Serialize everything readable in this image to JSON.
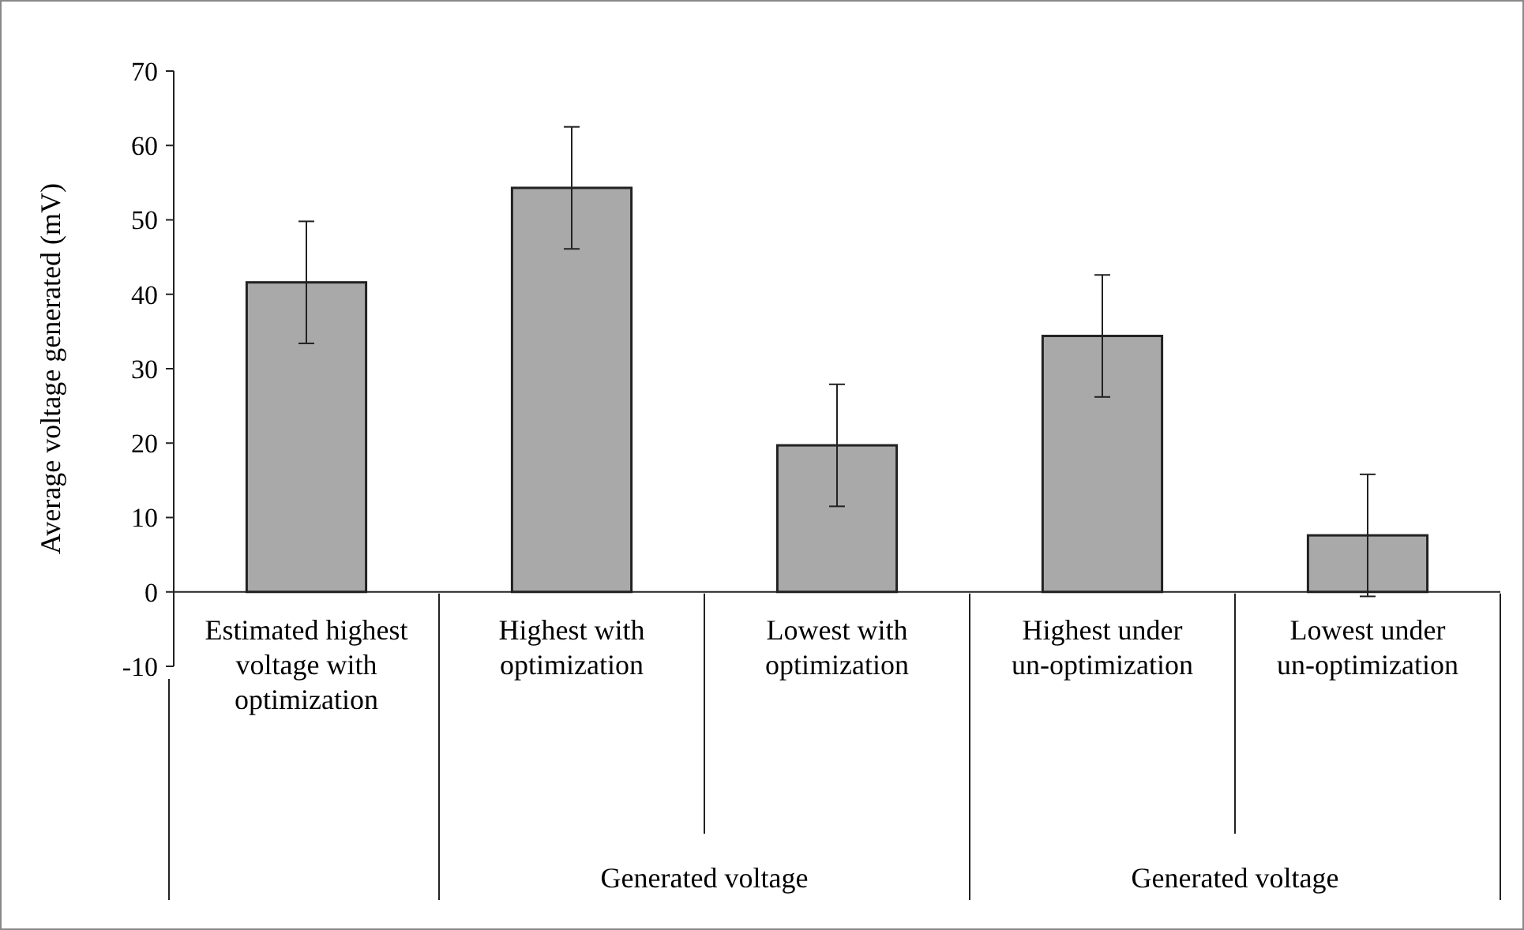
{
  "chart_data": {
    "type": "bar",
    "ylabel": "Average voltage generated (mV)",
    "categories": [
      "Estimated highest voltage with optimization",
      "Highest with optimization",
      "Lowest with optimization",
      "Highest under un-optimization",
      "Lowest under un-optimization"
    ],
    "values": [
      41.6,
      54.3,
      19.7,
      34.4,
      7.6
    ],
    "errors": [
      8.2,
      8.2,
      8.2,
      8.2,
      8.2
    ],
    "color": "#a9a9a9",
    "ylim": [
      -10,
      70
    ],
    "yticks": [
      -10,
      0,
      10,
      20,
      30,
      40,
      50,
      60,
      70
    ],
    "grid": false,
    "annotations": [
      "Generated voltage",
      "Generated voltage"
    ]
  }
}
